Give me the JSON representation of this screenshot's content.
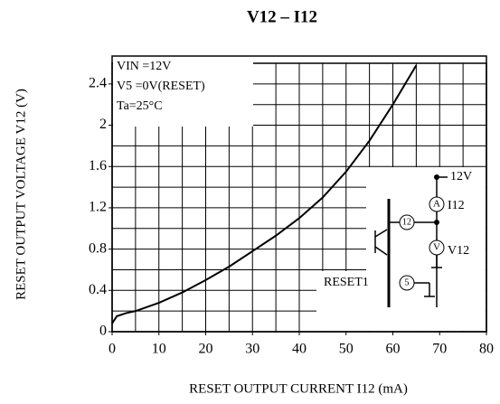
{
  "chart_data": {
    "type": "line",
    "title": "V12  –  I12",
    "xlabel": "RESET  OUTPUT  CURRENT  I12  (mA)",
    "ylabel": "RESET  OUTPUT  VOLTAGE  V12    (V)",
    "x": [
      0,
      1,
      3,
      5,
      10,
      15,
      20,
      25,
      30,
      35,
      40,
      45,
      50,
      55,
      60,
      65
    ],
    "series": [
      {
        "name": "V12",
        "color": "#000000",
        "values": [
          0.08,
          0.15,
          0.18,
          0.2,
          0.28,
          0.38,
          0.5,
          0.63,
          0.78,
          0.93,
          1.1,
          1.3,
          1.55,
          1.85,
          2.2,
          2.58
        ]
      }
    ],
    "xlim": [
      0,
      80
    ],
    "xticks": [
      0,
      10,
      20,
      30,
      40,
      50,
      60,
      70,
      80
    ],
    "ylim": [
      0,
      2.6
    ],
    "yticks": [
      0,
      0.4,
      0.8,
      1.2,
      1.6,
      2.0,
      2.4
    ],
    "xgrid": [
      5,
      10,
      15,
      20,
      25,
      30,
      35,
      40,
      45,
      50,
      55,
      60,
      65,
      70,
      75
    ],
    "ygrid": [
      0.2,
      0.4,
      0.6,
      0.8,
      1.0,
      1.2,
      1.4,
      1.6,
      1.8,
      2.0,
      2.2,
      2.4
    ],
    "conditions": [
      "VIN =12V",
      "V5 =0V(RESET)",
      "Ta=25°C"
    ],
    "circuit": {
      "supply": "12V",
      "ammeter": "A",
      "current": "I12",
      "pin12": "12",
      "voltmeter": "V",
      "voltage": "V12",
      "reset": "RESET1",
      "pin5": "5"
    }
  }
}
